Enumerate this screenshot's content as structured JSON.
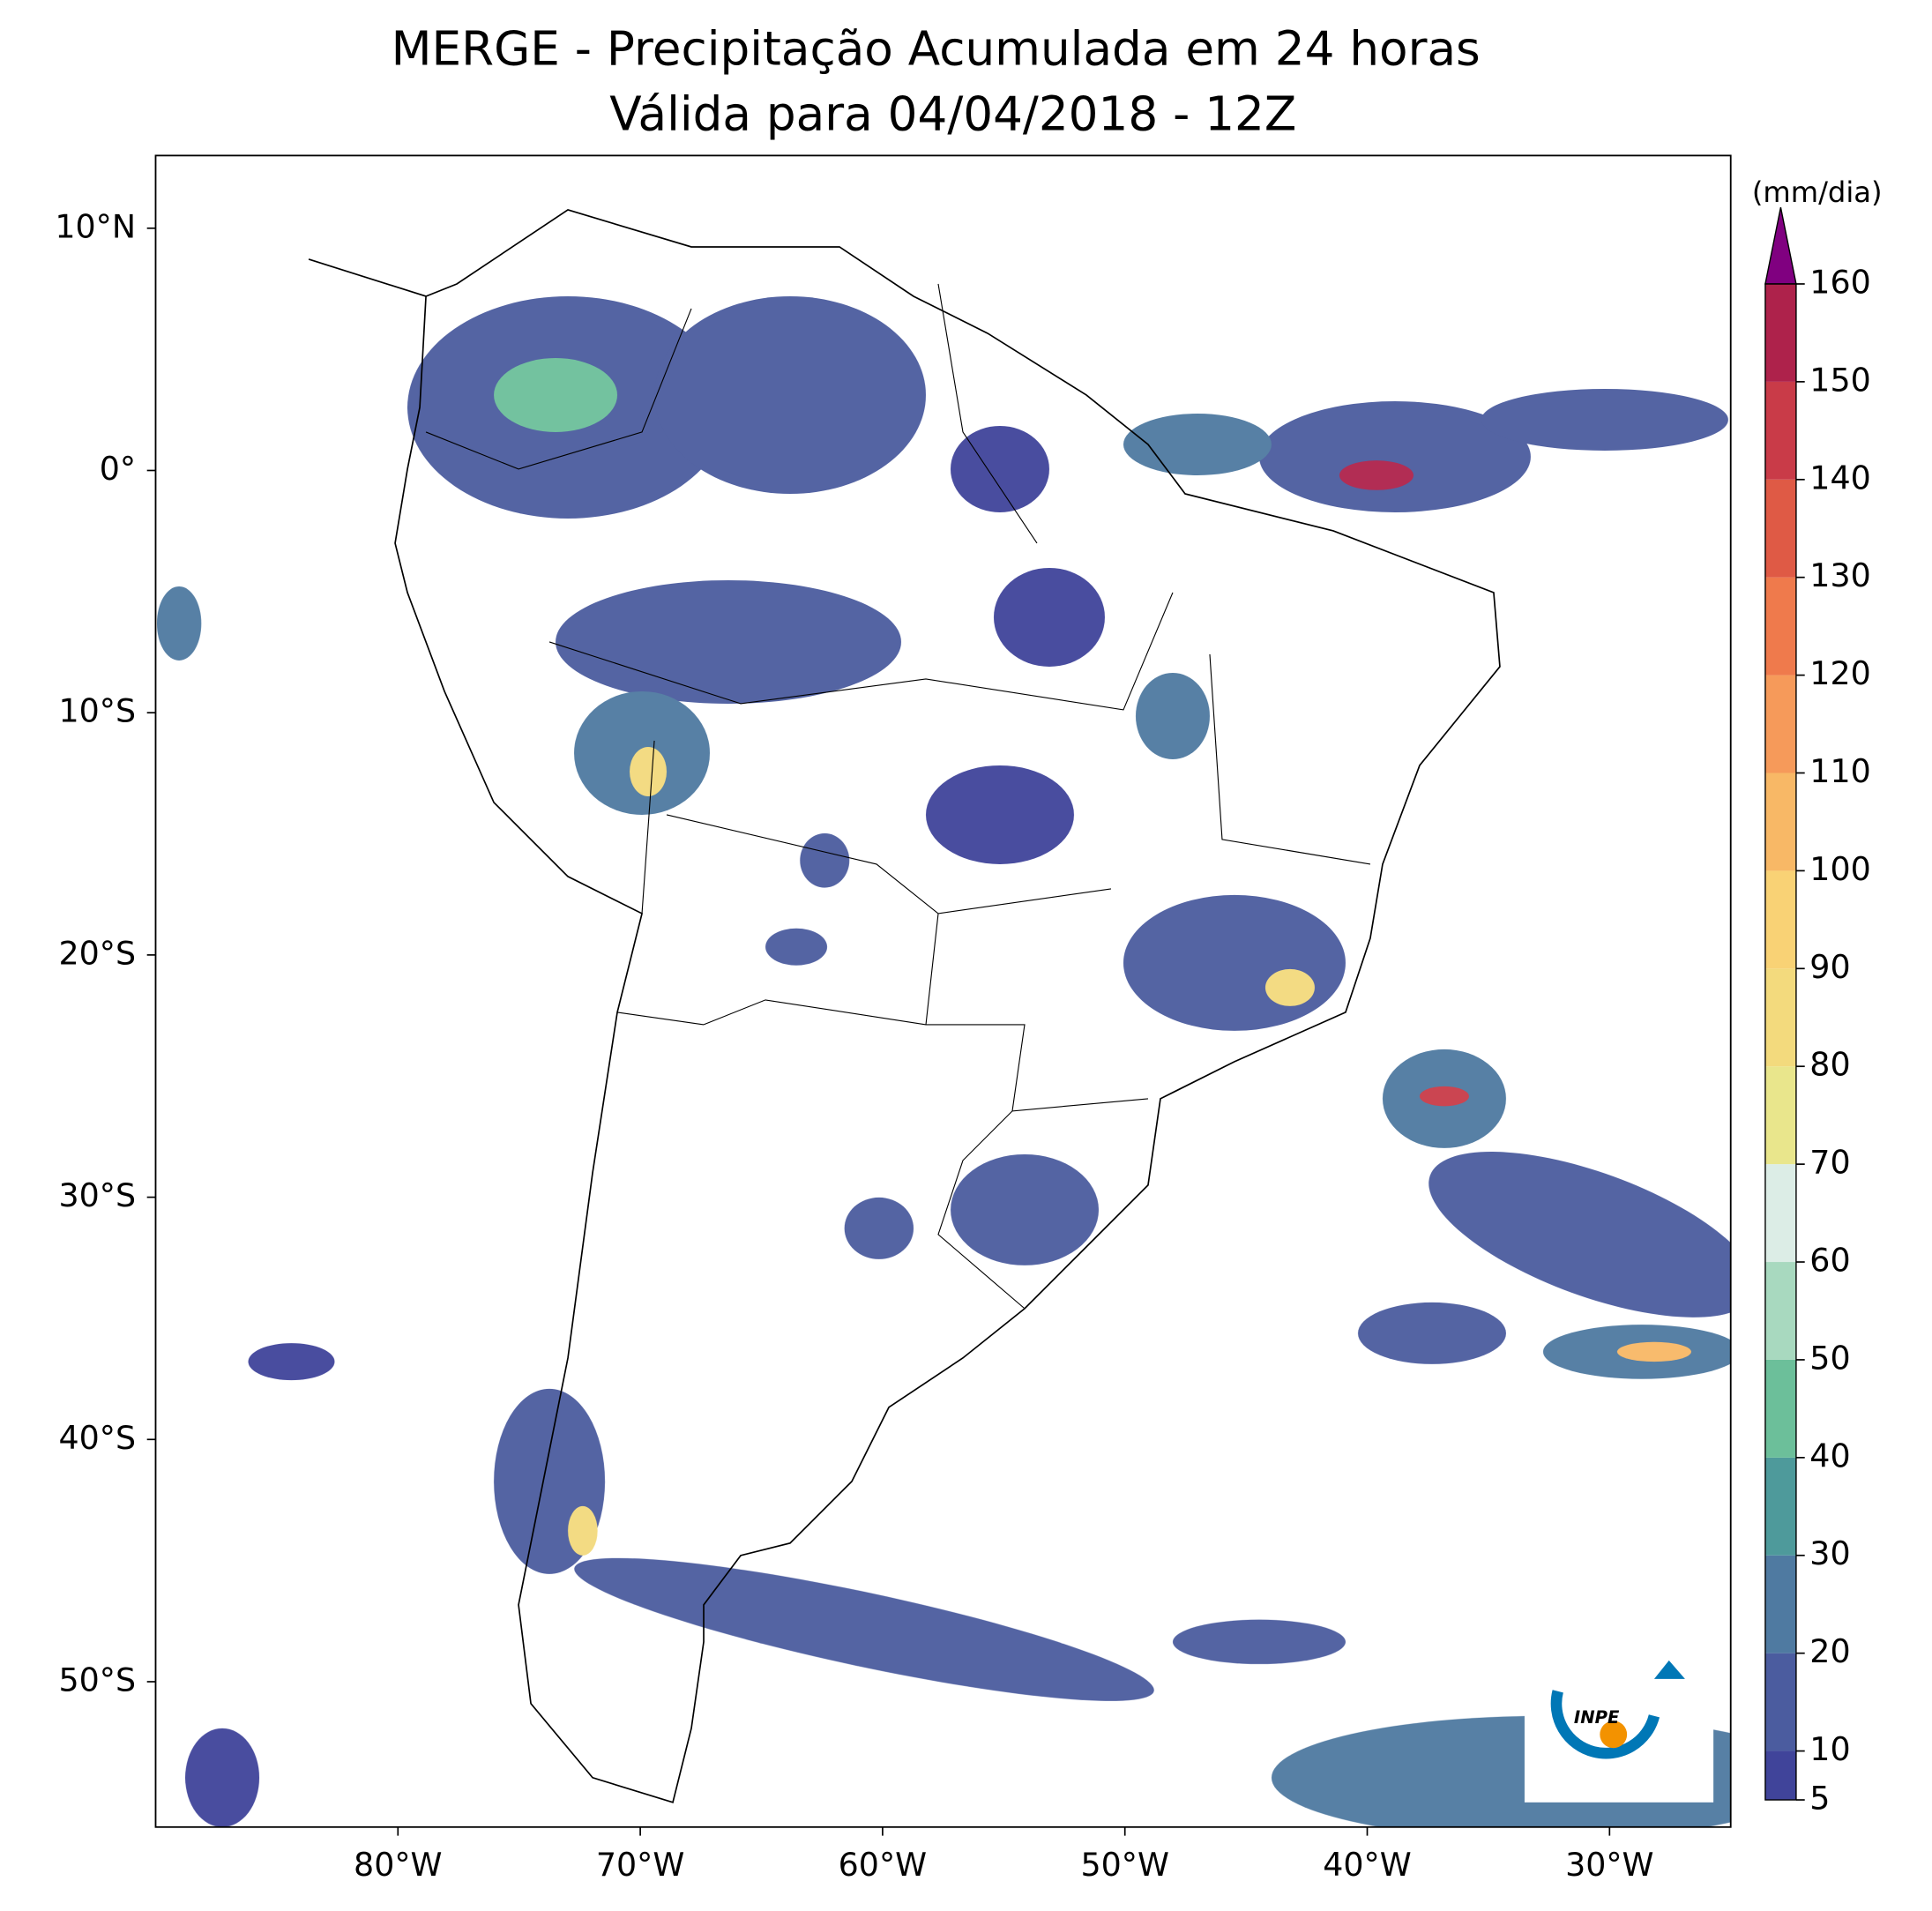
{
  "title": "MERGE - Precipitação Acumulada em 24 horas",
  "subtitle": "Válida para 04/04/2018 - 12Z",
  "map": {
    "xlim": [
      -90,
      -25
    ],
    "ylim": [
      -56,
      13
    ],
    "xticks": [
      {
        "value": -80,
        "label": "80°W"
      },
      {
        "value": -70,
        "label": "70°W"
      },
      {
        "value": -60,
        "label": "60°W"
      },
      {
        "value": -50,
        "label": "50°W"
      },
      {
        "value": -40,
        "label": "40°W"
      },
      {
        "value": -30,
        "label": "30°W"
      }
    ],
    "yticks": [
      {
        "value": 10,
        "label": "10°N"
      },
      {
        "value": 0,
        "label": "0°"
      },
      {
        "value": -10,
        "label": "10°S"
      },
      {
        "value": -20,
        "label": "20°S"
      },
      {
        "value": -30,
        "label": "30°S"
      },
      {
        "value": -40,
        "label": "40°S"
      },
      {
        "value": -50,
        "label": "50°S"
      }
    ]
  },
  "colorbar": {
    "label": "(mm/dia)",
    "ticks": [
      5,
      10,
      20,
      30,
      40,
      50,
      60,
      70,
      80,
      90,
      100,
      110,
      120,
      130,
      140,
      150,
      160
    ],
    "colors": [
      "#40449a",
      "#4b5c9f",
      "#4f7aa1",
      "#4e9a9b",
      "#6cbf9a",
      "#a8d9bf",
      "#dcede6",
      "#e9e68c",
      "#f3da7d",
      "#f9d275",
      "#f8b866",
      "#f69a5a",
      "#ef7a4c",
      "#df5a45",
      "#c93b48",
      "#ae224b"
    ],
    "extend_color": "#800080"
  },
  "logo_text": "INPE"
}
